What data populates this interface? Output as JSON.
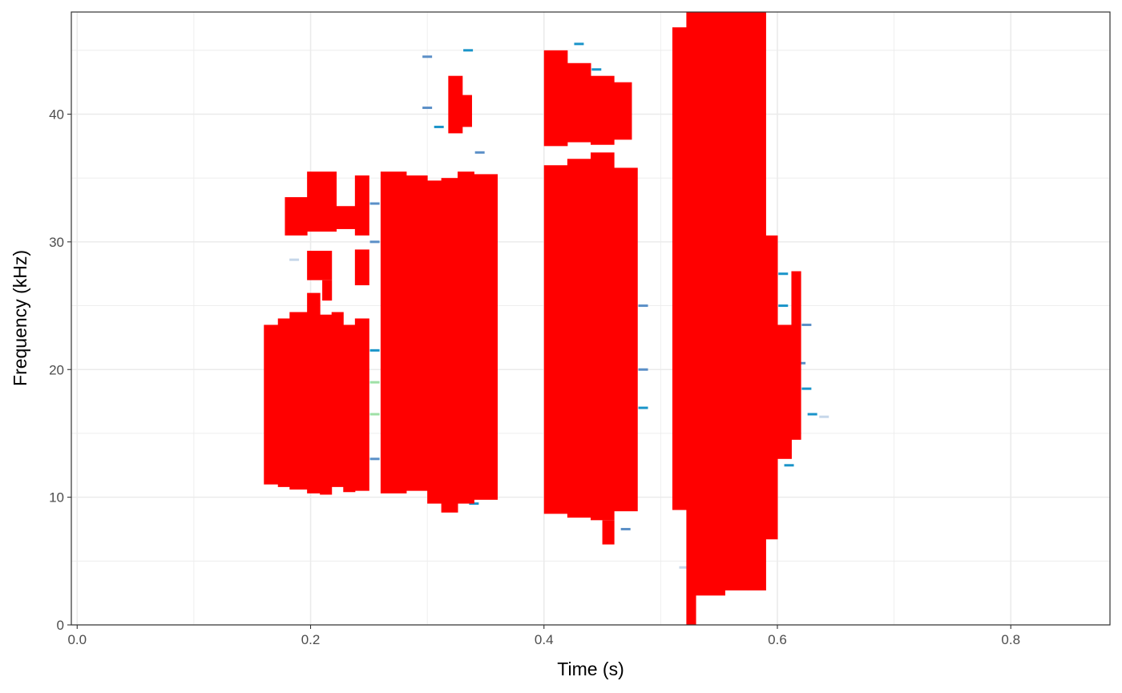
{
  "chart_data": {
    "type": "heatmap",
    "subtype": "spectrogram",
    "title": "",
    "xlabel": "Time (s)",
    "ylabel": "Frequency (kHz)",
    "xlim": [
      -0.005,
      0.885
    ],
    "ylim": [
      0,
      48
    ],
    "x_ticks": [
      0.0,
      0.2,
      0.4,
      0.6,
      0.8
    ],
    "x_tick_labels": [
      "0.0",
      "0.2",
      "0.4",
      "0.6",
      "0.8"
    ],
    "y_ticks": [
      0,
      10,
      20,
      30,
      40
    ],
    "y_tick_labels": [
      "0",
      "10",
      "20",
      "30",
      "40"
    ],
    "grid": true,
    "legend": "none",
    "colors": {
      "detection": "#ff0000",
      "low_energy": "#c6d7ea",
      "mid_energy": "#5b8fc7",
      "high_energy": "#1a94c9",
      "peak_energy": "#9fe0a6",
      "panel_border": "#333333",
      "grid": "#ebebeb"
    },
    "detection_regions": [
      {
        "t0": 0.16,
        "t1": 0.172,
        "f0": 11.0,
        "f1": 23.5
      },
      {
        "t0": 0.172,
        "t1": 0.182,
        "f0": 10.8,
        "f1": 24.0
      },
      {
        "t0": 0.182,
        "t1": 0.197,
        "f0": 10.6,
        "f1": 24.5
      },
      {
        "t0": 0.197,
        "t1": 0.208,
        "f0": 10.3,
        "f1": 26.0
      },
      {
        "t0": 0.208,
        "t1": 0.218,
        "f0": 10.2,
        "f1": 24.3
      },
      {
        "t0": 0.218,
        "t1": 0.228,
        "f0": 10.8,
        "f1": 24.5
      },
      {
        "t0": 0.228,
        "t1": 0.238,
        "f0": 10.4,
        "f1": 23.5
      },
      {
        "t0": 0.238,
        "t1": 0.25,
        "f0": 10.5,
        "f1": 24.0
      },
      {
        "t0": 0.178,
        "t1": 0.197,
        "f0": 30.5,
        "f1": 33.5
      },
      {
        "t0": 0.197,
        "t1": 0.222,
        "f0": 30.8,
        "f1": 35.5
      },
      {
        "t0": 0.222,
        "t1": 0.238,
        "f0": 31.0,
        "f1": 32.8
      },
      {
        "t0": 0.238,
        "t1": 0.25,
        "f0": 30.5,
        "f1": 35.2
      },
      {
        "t0": 0.197,
        "t1": 0.218,
        "f0": 27.0,
        "f1": 29.3
      },
      {
        "t0": 0.21,
        "t1": 0.218,
        "f0": 25.4,
        "f1": 27.0
      },
      {
        "t0": 0.238,
        "t1": 0.25,
        "f0": 26.6,
        "f1": 29.4
      },
      {
        "t0": 0.26,
        "t1": 0.282,
        "f0": 10.3,
        "f1": 35.5
      },
      {
        "t0": 0.282,
        "t1": 0.3,
        "f0": 10.5,
        "f1": 35.2
      },
      {
        "t0": 0.3,
        "t1": 0.312,
        "f0": 9.5,
        "f1": 34.8
      },
      {
        "t0": 0.312,
        "t1": 0.326,
        "f0": 8.8,
        "f1": 35.0
      },
      {
        "t0": 0.326,
        "t1": 0.34,
        "f0": 9.5,
        "f1": 35.5
      },
      {
        "t0": 0.34,
        "t1": 0.36,
        "f0": 9.8,
        "f1": 35.3
      },
      {
        "t0": 0.318,
        "t1": 0.33,
        "f0": 38.5,
        "f1": 43.0
      },
      {
        "t0": 0.33,
        "t1": 0.338,
        "f0": 39.0,
        "f1": 41.5
      },
      {
        "t0": 0.4,
        "t1": 0.42,
        "f0": 8.7,
        "f1": 36.0
      },
      {
        "t0": 0.42,
        "t1": 0.44,
        "f0": 8.4,
        "f1": 36.5
      },
      {
        "t0": 0.44,
        "t1": 0.46,
        "f0": 8.2,
        "f1": 37.0
      },
      {
        "t0": 0.45,
        "t1": 0.46,
        "f0": 6.3,
        "f1": 8.2
      },
      {
        "t0": 0.46,
        "t1": 0.48,
        "f0": 8.9,
        "f1": 35.8
      },
      {
        "t0": 0.4,
        "t1": 0.42,
        "f0": 37.5,
        "f1": 45.0
      },
      {
        "t0": 0.42,
        "t1": 0.44,
        "f0": 37.8,
        "f1": 44.0
      },
      {
        "t0": 0.44,
        "t1": 0.46,
        "f0": 37.6,
        "f1": 43.0
      },
      {
        "t0": 0.46,
        "t1": 0.475,
        "f0": 38.0,
        "f1": 42.5
      },
      {
        "t0": 0.51,
        "t1": 0.522,
        "f0": 9.0,
        "f1": 46.8
      },
      {
        "t0": 0.522,
        "t1": 0.53,
        "f0": 0.0,
        "f1": 48.0
      },
      {
        "t0": 0.53,
        "t1": 0.555,
        "f0": 2.3,
        "f1": 48.0
      },
      {
        "t0": 0.555,
        "t1": 0.575,
        "f0": 2.7,
        "f1": 48.0
      },
      {
        "t0": 0.575,
        "t1": 0.59,
        "f0": 2.7,
        "f1": 48.0
      },
      {
        "t0": 0.59,
        "t1": 0.6,
        "f0": 6.7,
        "f1": 30.5
      },
      {
        "t0": 0.6,
        "t1": 0.612,
        "f0": 13.0,
        "f1": 23.5
      },
      {
        "t0": 0.612,
        "t1": 0.62,
        "f0": 14.5,
        "f1": 27.7
      }
    ],
    "energy_bins": [
      {
        "t": 0.166,
        "f": 20.8,
        "level": 2
      },
      {
        "t": 0.166,
        "f": 15.0,
        "level": 1
      },
      {
        "t": 0.186,
        "f": 31.5,
        "level": 2
      },
      {
        "t": 0.186,
        "f": 28.6,
        "level": 1
      },
      {
        "t": 0.225,
        "f": 17.5,
        "level": 3
      },
      {
        "t": 0.225,
        "f": 16.0,
        "level": 4
      },
      {
        "t": 0.225,
        "f": 18.8,
        "level": 3
      },
      {
        "t": 0.225,
        "f": 22.5,
        "level": 2
      },
      {
        "t": 0.255,
        "f": 16.5,
        "level": 4
      },
      {
        "t": 0.255,
        "f": 19.0,
        "level": 4
      },
      {
        "t": 0.255,
        "f": 21.5,
        "level": 3
      },
      {
        "t": 0.255,
        "f": 13.0,
        "level": 2
      },
      {
        "t": 0.255,
        "f": 30.0,
        "level": 2
      },
      {
        "t": 0.255,
        "f": 33.0,
        "level": 2
      },
      {
        "t": 0.3,
        "f": 40.5,
        "level": 2
      },
      {
        "t": 0.3,
        "f": 44.5,
        "level": 2
      },
      {
        "t": 0.31,
        "f": 39.0,
        "level": 3
      },
      {
        "t": 0.335,
        "f": 45.0,
        "level": 3
      },
      {
        "t": 0.345,
        "f": 37.0,
        "level": 2
      },
      {
        "t": 0.33,
        "f": 12.0,
        "level": 2
      },
      {
        "t": 0.34,
        "f": 9.5,
        "level": 3
      },
      {
        "t": 0.35,
        "f": 16.5,
        "level": 2
      },
      {
        "t": 0.43,
        "f": 45.5,
        "level": 3
      },
      {
        "t": 0.445,
        "f": 43.5,
        "level": 3
      },
      {
        "t": 0.455,
        "f": 39.0,
        "level": 2
      },
      {
        "t": 0.485,
        "f": 25.0,
        "level": 2
      },
      {
        "t": 0.485,
        "f": 20.0,
        "level": 2
      },
      {
        "t": 0.485,
        "f": 17.0,
        "level": 3
      },
      {
        "t": 0.47,
        "f": 7.5,
        "level": 2
      },
      {
        "t": 0.52,
        "f": 4.5,
        "level": 1
      },
      {
        "t": 0.56,
        "f": 6.5,
        "level": 3
      },
      {
        "t": 0.58,
        "f": 9.0,
        "level": 3
      },
      {
        "t": 0.58,
        "f": 6.0,
        "level": 2
      },
      {
        "t": 0.605,
        "f": 27.5,
        "level": 3
      },
      {
        "t": 0.605,
        "f": 25.0,
        "level": 3
      },
      {
        "t": 0.605,
        "f": 14.5,
        "level": 3
      },
      {
        "t": 0.61,
        "f": 12.5,
        "level": 3
      },
      {
        "t": 0.625,
        "f": 23.5,
        "level": 2
      },
      {
        "t": 0.625,
        "f": 18.5,
        "level": 3
      },
      {
        "t": 0.63,
        "f": 16.5,
        "level": 3
      },
      {
        "t": 0.64,
        "f": 16.3,
        "level": 1
      },
      {
        "t": 0.62,
        "f": 20.5,
        "level": 2
      }
    ]
  }
}
